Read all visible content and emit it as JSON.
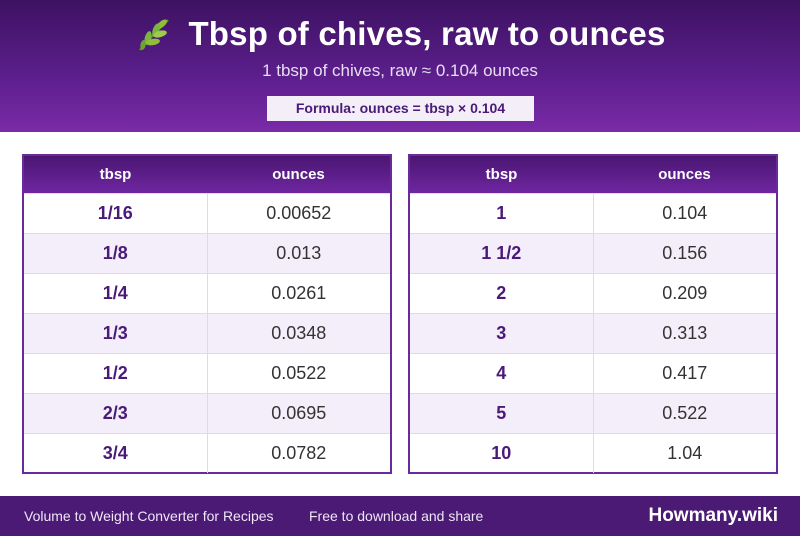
{
  "header": {
    "icon": "herb-leaf-icon",
    "title": "Tbsp of chives, raw to ounces",
    "subtitle": "1 tbsp of chives, raw ≈ 0.104 ounces",
    "formula": "Formula: ounces = tbsp × 0.104"
  },
  "tables": [
    {
      "headers": [
        "tbsp",
        "ounces"
      ],
      "rows": [
        [
          "1/16",
          "0.00652"
        ],
        [
          "1/8",
          "0.013"
        ],
        [
          "1/4",
          "0.0261"
        ],
        [
          "1/3",
          "0.0348"
        ],
        [
          "1/2",
          "0.0522"
        ],
        [
          "2/3",
          "0.0695"
        ],
        [
          "3/4",
          "0.0782"
        ]
      ]
    },
    {
      "headers": [
        "tbsp",
        "ounces"
      ],
      "rows": [
        [
          "1",
          "0.104"
        ],
        [
          "1 1/2",
          "0.156"
        ],
        [
          "2",
          "0.209"
        ],
        [
          "3",
          "0.313"
        ],
        [
          "4",
          "0.417"
        ],
        [
          "5",
          "0.522"
        ],
        [
          "10",
          "1.04"
        ]
      ]
    }
  ],
  "footer": {
    "left": "Volume to Weight Converter for Recipes",
    "middle": "Free to download and share",
    "brand": "Howmany.wiki"
  },
  "colors": {
    "header_dark": "#3d1262",
    "header_light": "#7a2aa8",
    "accent_text": "#4a1a78",
    "footer_bg": "#4a1a74",
    "row_alt": "#f3eefa"
  }
}
